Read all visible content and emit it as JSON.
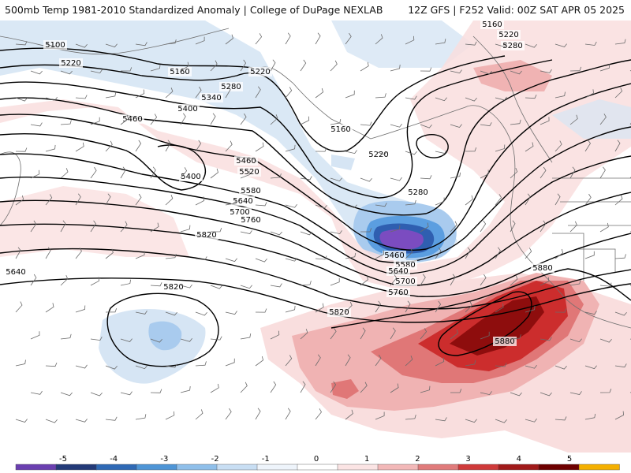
{
  "header": {
    "title": "500mb Temp 1981-2010 Standardized Anomaly | College of DuPage NEXLAB",
    "run_info": "12Z GFS | F252 Valid: 00Z SAT APR 05 2025"
  },
  "contour_labels": [
    "5100",
    "5160",
    "5160",
    "5160",
    "5220",
    "5220",
    "5220",
    "5220",
    "5280",
    "5280",
    "5280",
    "5340",
    "5400",
    "5400",
    "5460",
    "5460",
    "5460",
    "5520",
    "5580",
    "5580",
    "5640",
    "5640",
    "5640",
    "5700",
    "5700",
    "5760",
    "5760",
    "5820",
    "5820",
    "5820",
    "5880",
    "5880"
  ],
  "legend": {
    "ticks": [
      "-5",
      "-4",
      "-3",
      "-2",
      "-1",
      "0",
      "1",
      "2",
      "3",
      "4",
      "5"
    ],
    "colors": [
      "#6a3fb0",
      "#233a78",
      "#2f69b5",
      "#4e95d6",
      "#8fbfea",
      "#c8def3",
      "#eef4fb",
      "#ffffff",
      "#fbe4e4",
      "#f2b8b8",
      "#e07b7b",
      "#cf3a3a",
      "#a11a1a",
      "#6e0000",
      "#f4b000"
    ]
  },
  "colors": {
    "cold1": "#d6e5f4",
    "cold2": "#a9cbee",
    "cold3": "#5b9ee0",
    "cold4": "#2f5fb0",
    "cold5": "#7b4cc0",
    "warm1": "#f9dede",
    "warm2": "#f0b3b3",
    "warm3": "#e07777",
    "warm4": "#cc2d2d",
    "warm5": "#8e0d0d",
    "contour": "#000000",
    "coast": "#6f6f6f"
  }
}
